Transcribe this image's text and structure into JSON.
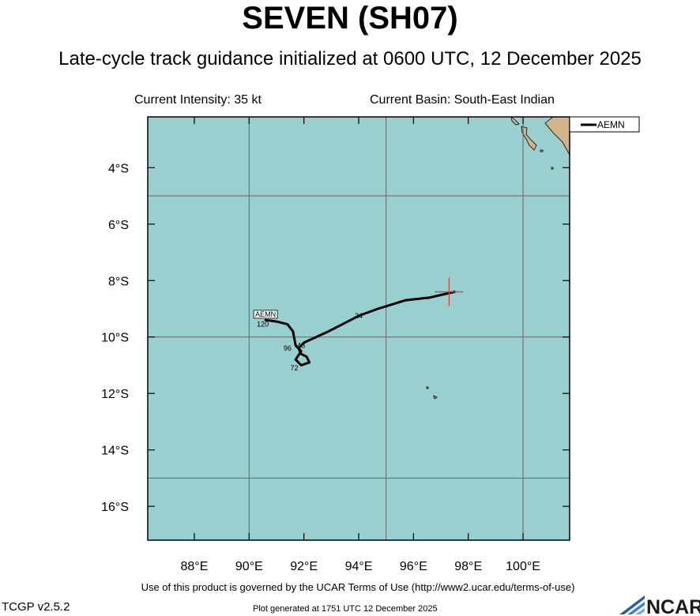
{
  "header": {
    "title": "SEVEN (SH07)",
    "subtitle": "Late-cycle track guidance initialized at 0600 UTC, 12 December 2025",
    "current_intensity": "Current Intensity: 35 kt",
    "current_basin": "Current Basin: South-East Indian"
  },
  "map": {
    "lon_range": [
      86.3,
      101.7
    ],
    "lat_range": [
      -17.2,
      -2.2
    ],
    "lat_ticks": [
      {
        "value": -4,
        "label": "4°S"
      },
      {
        "value": -6,
        "label": "6°S"
      },
      {
        "value": -8,
        "label": "8°S"
      },
      {
        "value": -10,
        "label": "10°S"
      },
      {
        "value": -12,
        "label": "12°S"
      },
      {
        "value": -14,
        "label": "14°S"
      },
      {
        "value": -16,
        "label": "16°S"
      }
    ],
    "lon_ticks": [
      {
        "value": 88,
        "label": "88°E"
      },
      {
        "value": 90,
        "label": "90°E"
      },
      {
        "value": 92,
        "label": "92°E"
      },
      {
        "value": 94,
        "label": "94°E"
      },
      {
        "value": 96,
        "label": "96°E"
      },
      {
        "value": 98,
        "label": "98°E"
      },
      {
        "value": 100,
        "label": "100°E"
      }
    ],
    "grid_lons": [
      90,
      95,
      100
    ],
    "grid_lats": [
      -5,
      -10,
      -15
    ],
    "colors": {
      "ocean": "#99cfcf",
      "land": "#d2b48c",
      "grid": "#666666",
      "track": "#000000",
      "current_position": "#d94040"
    },
    "current_position": {
      "lon": 97.3,
      "lat": -8.4
    },
    "tracks": [
      {
        "name": "AEMN",
        "points": [
          {
            "lon": 97.5,
            "lat": -8.4
          },
          {
            "lon": 96.6,
            "lat": -8.6
          },
          {
            "lon": 95.7,
            "lat": -8.7
          },
          {
            "lon": 94.7,
            "lat": -9.0
          },
          {
            "lon": 94.0,
            "lat": -9.25
          },
          {
            "lon": 93.7,
            "lat": -9.4
          },
          {
            "lon": 92.9,
            "lat": -9.8
          },
          {
            "lon": 92.0,
            "lat": -10.2
          },
          {
            "lon": 91.8,
            "lat": -10.4
          },
          {
            "lon": 91.9,
            "lat": -10.6
          },
          {
            "lon": 92.1,
            "lat": -10.7
          },
          {
            "lon": 92.2,
            "lat": -10.9
          },
          {
            "lon": 91.9,
            "lat": -11.0
          },
          {
            "lon": 91.7,
            "lat": -10.8
          },
          {
            "lon": 91.9,
            "lat": -10.5
          },
          {
            "lon": 91.7,
            "lat": -10.3
          },
          {
            "lon": 91.6,
            "lat": -9.8
          },
          {
            "lon": 91.4,
            "lat": -9.55
          },
          {
            "lon": 91.0,
            "lat": -9.45
          },
          {
            "lon": 90.6,
            "lat": -9.4
          }
        ],
        "tau_labels": [
          {
            "text": "24",
            "lon": 94.0,
            "lat": -9.25
          },
          {
            "text": "48",
            "lon": 91.9,
            "lat": -10.3
          },
          {
            "text": "72",
            "lon": 91.65,
            "lat": -11.1
          },
          {
            "text": "96",
            "lon": 91.4,
            "lat": -10.4
          },
          {
            "text": "120",
            "lon": 90.5,
            "lat": -9.55
          }
        ],
        "end_label": {
          "text": "AEMN",
          "lon": 90.6,
          "lat": -9.25
        }
      }
    ],
    "legend": [
      {
        "label": "AEMN"
      }
    ]
  },
  "footer": {
    "terms": "Use of this product is governed by the UCAR Terms of Use (http://www2.ucar.edu/terms-of-use)",
    "version": "TCGP v2.5.2",
    "generated": "Plot generated at 1751 UTC   12 December 2025",
    "logo_text": "NCAR"
  }
}
